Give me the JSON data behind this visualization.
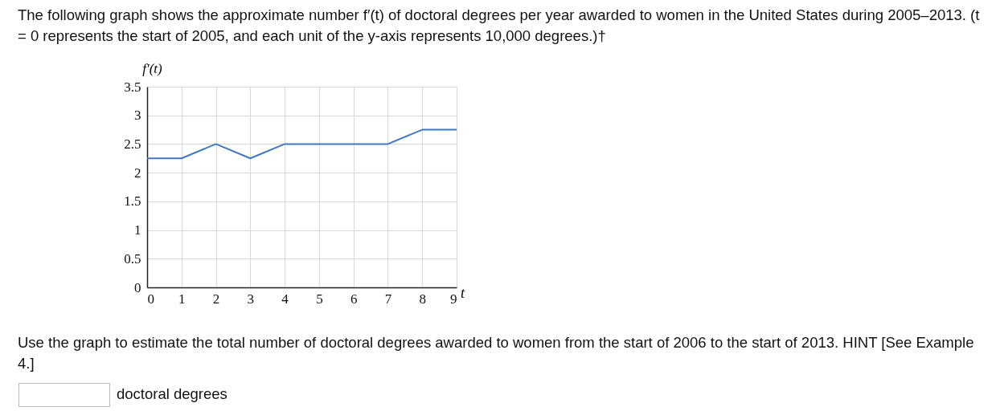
{
  "chart_data": {
    "type": "line",
    "title": "The following graph shows the approximate number f′(t) of doctoral degrees per year awarded to women in the United States during 2005–2013. (t = 0 represents the start of 2005, and each unit of the y-axis represents 10,000 degrees.)†",
    "xlabel": "t",
    "ylabel": "f′(t)",
    "x": [
      0,
      1,
      2,
      3,
      4,
      5,
      6,
      7,
      8,
      9
    ],
    "series": [
      {
        "color": "#3f78c0",
        "values": [
          2.25,
          2.25,
          2.5,
          2.25,
          2.5,
          2.5,
          2.5,
          2.5,
          2.75,
          2.75
        ]
      }
    ],
    "xlim": [
      0,
      9
    ],
    "ylim": [
      0,
      3.5
    ],
    "xticks": [
      0,
      1,
      2,
      3,
      4,
      5,
      6,
      7,
      8,
      9
    ],
    "yticks": [
      0,
      0.5,
      1,
      1.5,
      2,
      2.5,
      3,
      3.5
    ],
    "grid": true,
    "annotations": [
      "Use the graph to estimate the total number of doctoral degrees awarded to women from the start of 2006 to the start of 2013. HINT [See Example 4.]",
      "doctoral degrees"
    ]
  }
}
